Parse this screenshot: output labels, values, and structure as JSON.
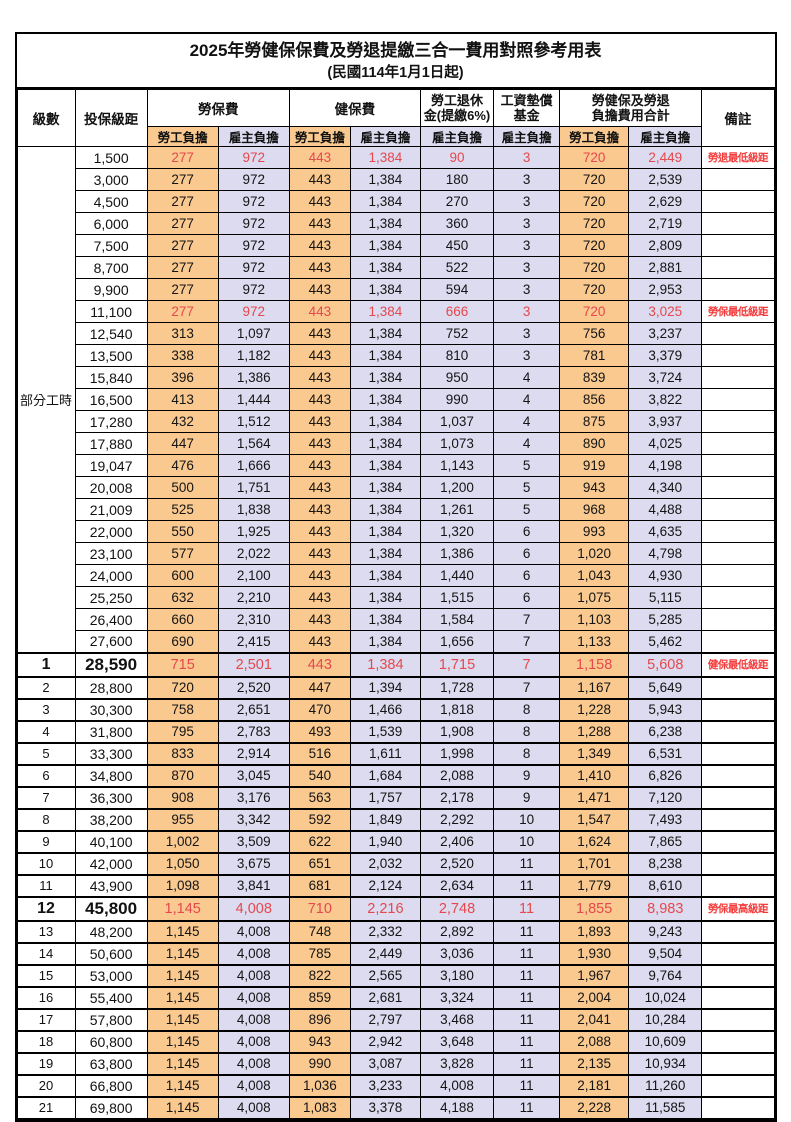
{
  "title": "2025年勞健保保費及勞退提繳三合一費用對照參考用表",
  "subtitle": "(民國114年1月1日起)",
  "colors": {
    "employee_column_bg": "#F9C98F",
    "employer_column_bg": "#DCDBF0",
    "highlight_value_red": "#E5484D",
    "note_red": "#F43B3B",
    "border": "#000000"
  },
  "table": {
    "headers": {
      "level": "級數",
      "bracket": "投保級距",
      "labor": "勞保費",
      "health": "健保費",
      "pension_line1": "勞工退休",
      "pension_line2": "金(提繳6%)",
      "wage_fund_line1": "工資墊償",
      "wage_fund_line2": "基金",
      "total_line1": "勞健保及勞退",
      "total_line2": "負擔費用合計",
      "note": "備註",
      "employee": "勞工負擔",
      "employer": "雇主負擔"
    },
    "part_time_label": "部分工時",
    "rows": [
      {
        "section": "part",
        "level": null,
        "bracket": "1,500",
        "values": [
          "277",
          "972",
          "443",
          "1,384",
          "90",
          "3",
          "720",
          "2,449"
        ],
        "note": "勞退最低級距",
        "highlight": true,
        "big": false
      },
      {
        "section": "part",
        "level": null,
        "bracket": "3,000",
        "values": [
          "277",
          "972",
          "443",
          "1,384",
          "180",
          "3",
          "720",
          "2,539"
        ],
        "note": "",
        "highlight": false,
        "big": false
      },
      {
        "section": "part",
        "level": null,
        "bracket": "4,500",
        "values": [
          "277",
          "972",
          "443",
          "1,384",
          "270",
          "3",
          "720",
          "2,629"
        ],
        "note": "",
        "highlight": false,
        "big": false
      },
      {
        "section": "part",
        "level": null,
        "bracket": "6,000",
        "values": [
          "277",
          "972",
          "443",
          "1,384",
          "360",
          "3",
          "720",
          "2,719"
        ],
        "note": "",
        "highlight": false,
        "big": false
      },
      {
        "section": "part",
        "level": null,
        "bracket": "7,500",
        "values": [
          "277",
          "972",
          "443",
          "1,384",
          "450",
          "3",
          "720",
          "2,809"
        ],
        "note": "",
        "highlight": false,
        "big": false
      },
      {
        "section": "part",
        "level": null,
        "bracket": "8,700",
        "values": [
          "277",
          "972",
          "443",
          "1,384",
          "522",
          "3",
          "720",
          "2,881"
        ],
        "note": "",
        "highlight": false,
        "big": false
      },
      {
        "section": "part",
        "level": null,
        "bracket": "9,900",
        "values": [
          "277",
          "972",
          "443",
          "1,384",
          "594",
          "3",
          "720",
          "2,953"
        ],
        "note": "",
        "highlight": false,
        "big": false
      },
      {
        "section": "part",
        "level": null,
        "bracket": "11,100",
        "values": [
          "277",
          "972",
          "443",
          "1,384",
          "666",
          "3",
          "720",
          "3,025"
        ],
        "note": "勞保最低級距",
        "highlight": true,
        "big": false
      },
      {
        "section": "part",
        "level": null,
        "bracket": "12,540",
        "values": [
          "313",
          "1,097",
          "443",
          "1,384",
          "752",
          "3",
          "756",
          "3,237"
        ],
        "note": "",
        "highlight": false,
        "big": false
      },
      {
        "section": "part",
        "level": null,
        "bracket": "13,500",
        "values": [
          "338",
          "1,182",
          "443",
          "1,384",
          "810",
          "3",
          "781",
          "3,379"
        ],
        "note": "",
        "highlight": false,
        "big": false
      },
      {
        "section": "part",
        "level": null,
        "bracket": "15,840",
        "values": [
          "396",
          "1,386",
          "443",
          "1,384",
          "950",
          "4",
          "839",
          "3,724"
        ],
        "note": "",
        "highlight": false,
        "big": false
      },
      {
        "section": "part",
        "level": null,
        "bracket": "16,500",
        "values": [
          "413",
          "1,444",
          "443",
          "1,384",
          "990",
          "4",
          "856",
          "3,822"
        ],
        "note": "",
        "highlight": false,
        "big": false
      },
      {
        "section": "part",
        "level": null,
        "bracket": "17,280",
        "values": [
          "432",
          "1,512",
          "443",
          "1,384",
          "1,037",
          "4",
          "875",
          "3,937"
        ],
        "note": "",
        "highlight": false,
        "big": false
      },
      {
        "section": "part",
        "level": null,
        "bracket": "17,880",
        "values": [
          "447",
          "1,564",
          "443",
          "1,384",
          "1,073",
          "4",
          "890",
          "4,025"
        ],
        "note": "",
        "highlight": false,
        "big": false
      },
      {
        "section": "part",
        "level": null,
        "bracket": "19,047",
        "values": [
          "476",
          "1,666",
          "443",
          "1,384",
          "1,143",
          "5",
          "919",
          "4,198"
        ],
        "note": "",
        "highlight": false,
        "big": false
      },
      {
        "section": "part",
        "level": null,
        "bracket": "20,008",
        "values": [
          "500",
          "1,751",
          "443",
          "1,384",
          "1,200",
          "5",
          "943",
          "4,340"
        ],
        "note": "",
        "highlight": false,
        "big": false
      },
      {
        "section": "part",
        "level": null,
        "bracket": "21,009",
        "values": [
          "525",
          "1,838",
          "443",
          "1,384",
          "1,261",
          "5",
          "968",
          "4,488"
        ],
        "note": "",
        "highlight": false,
        "big": false
      },
      {
        "section": "part",
        "level": null,
        "bracket": "22,000",
        "values": [
          "550",
          "1,925",
          "443",
          "1,384",
          "1,320",
          "6",
          "993",
          "4,635"
        ],
        "note": "",
        "highlight": false,
        "big": false
      },
      {
        "section": "part",
        "level": null,
        "bracket": "23,100",
        "values": [
          "577",
          "2,022",
          "443",
          "1,384",
          "1,386",
          "6",
          "1,020",
          "4,798"
        ],
        "note": "",
        "highlight": false,
        "big": false
      },
      {
        "section": "part",
        "level": null,
        "bracket": "24,000",
        "values": [
          "600",
          "2,100",
          "443",
          "1,384",
          "1,440",
          "6",
          "1,043",
          "4,930"
        ],
        "note": "",
        "highlight": false,
        "big": false
      },
      {
        "section": "part",
        "level": null,
        "bracket": "25,250",
        "values": [
          "632",
          "2,210",
          "443",
          "1,384",
          "1,515",
          "6",
          "1,075",
          "5,115"
        ],
        "note": "",
        "highlight": false,
        "big": false
      },
      {
        "section": "part",
        "level": null,
        "bracket": "26,400",
        "values": [
          "660",
          "2,310",
          "443",
          "1,384",
          "1,584",
          "7",
          "1,103",
          "5,285"
        ],
        "note": "",
        "highlight": false,
        "big": false
      },
      {
        "section": "part",
        "level": null,
        "bracket": "27,600",
        "values": [
          "690",
          "2,415",
          "443",
          "1,384",
          "1,656",
          "7",
          "1,133",
          "5,462"
        ],
        "note": "",
        "highlight": false,
        "big": false
      },
      {
        "section": "level",
        "level": "1",
        "bracket": "28,590",
        "values": [
          "715",
          "2,501",
          "443",
          "1,384",
          "1,715",
          "7",
          "1,158",
          "5,608"
        ],
        "note": "健保最低級距",
        "highlight": true,
        "big": true
      },
      {
        "section": "level",
        "level": "2",
        "bracket": "28,800",
        "values": [
          "720",
          "2,520",
          "447",
          "1,394",
          "1,728",
          "7",
          "1,167",
          "5,649"
        ],
        "note": "",
        "highlight": false,
        "big": false
      },
      {
        "section": "level",
        "level": "3",
        "bracket": "30,300",
        "values": [
          "758",
          "2,651",
          "470",
          "1,466",
          "1,818",
          "8",
          "1,228",
          "5,943"
        ],
        "note": "",
        "highlight": false,
        "big": false
      },
      {
        "section": "level",
        "level": "4",
        "bracket": "31,800",
        "values": [
          "795",
          "2,783",
          "493",
          "1,539",
          "1,908",
          "8",
          "1,288",
          "6,238"
        ],
        "note": "",
        "highlight": false,
        "big": false
      },
      {
        "section": "level",
        "level": "5",
        "bracket": "33,300",
        "values": [
          "833",
          "2,914",
          "516",
          "1,611",
          "1,998",
          "8",
          "1,349",
          "6,531"
        ],
        "note": "",
        "highlight": false,
        "big": false
      },
      {
        "section": "level",
        "level": "6",
        "bracket": "34,800",
        "values": [
          "870",
          "3,045",
          "540",
          "1,684",
          "2,088",
          "9",
          "1,410",
          "6,826"
        ],
        "note": "",
        "highlight": false,
        "big": false
      },
      {
        "section": "level",
        "level": "7",
        "bracket": "36,300",
        "values": [
          "908",
          "3,176",
          "563",
          "1,757",
          "2,178",
          "9",
          "1,471",
          "7,120"
        ],
        "note": "",
        "highlight": false,
        "big": false
      },
      {
        "section": "level",
        "level": "8",
        "bracket": "38,200",
        "values": [
          "955",
          "3,342",
          "592",
          "1,849",
          "2,292",
          "10",
          "1,547",
          "7,493"
        ],
        "note": "",
        "highlight": false,
        "big": false
      },
      {
        "section": "level",
        "level": "9",
        "bracket": "40,100",
        "values": [
          "1,002",
          "3,509",
          "622",
          "1,940",
          "2,406",
          "10",
          "1,624",
          "7,865"
        ],
        "note": "",
        "highlight": false,
        "big": false
      },
      {
        "section": "level",
        "level": "10",
        "bracket": "42,000",
        "values": [
          "1,050",
          "3,675",
          "651",
          "2,032",
          "2,520",
          "11",
          "1,701",
          "8,238"
        ],
        "note": "",
        "highlight": false,
        "big": false
      },
      {
        "section": "level",
        "level": "11",
        "bracket": "43,900",
        "values": [
          "1,098",
          "3,841",
          "681",
          "2,124",
          "2,634",
          "11",
          "1,779",
          "8,610"
        ],
        "note": "",
        "highlight": false,
        "big": false
      },
      {
        "section": "level",
        "level": "12",
        "bracket": "45,800",
        "values": [
          "1,145",
          "4,008",
          "710",
          "2,216",
          "2,748",
          "11",
          "1,855",
          "8,983"
        ],
        "note": "勞保最高級距",
        "highlight": true,
        "big": true
      },
      {
        "section": "level",
        "level": "13",
        "bracket": "48,200",
        "values": [
          "1,145",
          "4,008",
          "748",
          "2,332",
          "2,892",
          "11",
          "1,893",
          "9,243"
        ],
        "note": "",
        "highlight": false,
        "big": false
      },
      {
        "section": "level",
        "level": "14",
        "bracket": "50,600",
        "values": [
          "1,145",
          "4,008",
          "785",
          "2,449",
          "3,036",
          "11",
          "1,930",
          "9,504"
        ],
        "note": "",
        "highlight": false,
        "big": false
      },
      {
        "section": "level",
        "level": "15",
        "bracket": "53,000",
        "values": [
          "1,145",
          "4,008",
          "822",
          "2,565",
          "3,180",
          "11",
          "1,967",
          "9,764"
        ],
        "note": "",
        "highlight": false,
        "big": false
      },
      {
        "section": "level",
        "level": "16",
        "bracket": "55,400",
        "values": [
          "1,145",
          "4,008",
          "859",
          "2,681",
          "3,324",
          "11",
          "2,004",
          "10,024"
        ],
        "note": "",
        "highlight": false,
        "big": false
      },
      {
        "section": "level",
        "level": "17",
        "bracket": "57,800",
        "values": [
          "1,145",
          "4,008",
          "896",
          "2,797",
          "3,468",
          "11",
          "2,041",
          "10,284"
        ],
        "note": "",
        "highlight": false,
        "big": false
      },
      {
        "section": "level",
        "level": "18",
        "bracket": "60,800",
        "values": [
          "1,145",
          "4,008",
          "943",
          "2,942",
          "3,648",
          "11",
          "2,088",
          "10,609"
        ],
        "note": "",
        "highlight": false,
        "big": false
      },
      {
        "section": "level",
        "level": "19",
        "bracket": "63,800",
        "values": [
          "1,145",
          "4,008",
          "990",
          "3,087",
          "3,828",
          "11",
          "2,135",
          "10,934"
        ],
        "note": "",
        "highlight": false,
        "big": false
      },
      {
        "section": "level",
        "level": "20",
        "bracket": "66,800",
        "values": [
          "1,145",
          "4,008",
          "1,036",
          "3,233",
          "4,008",
          "11",
          "2,181",
          "11,260"
        ],
        "note": "",
        "highlight": false,
        "big": false
      },
      {
        "section": "level",
        "level": "21",
        "bracket": "69,800",
        "values": [
          "1,145",
          "4,008",
          "1,083",
          "3,378",
          "4,188",
          "11",
          "2,228",
          "11,585"
        ],
        "note": "",
        "highlight": false,
        "big": false
      }
    ]
  }
}
